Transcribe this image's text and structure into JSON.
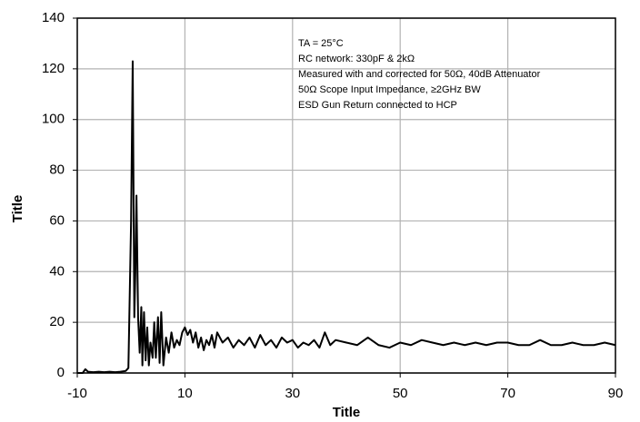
{
  "chart_data": {
    "type": "line",
    "x_label": "Title",
    "y_label": "Title",
    "annotations": [
      "TA = 25°C",
      "RC network: 330pF & 2kΩ",
      "Measured with and corrected for 50Ω, 40dB Attenuator",
      "50Ω Scope Input Impedance, ≥2GHz BW",
      "ESD Gun Return connected to HCP"
    ],
    "xlim": [
      -10,
      90
    ],
    "xticks": [
      -10,
      10,
      30,
      50,
      70,
      90
    ],
    "ylim": [
      0,
      140
    ],
    "yticks": [
      0,
      20,
      40,
      60,
      80,
      100,
      120,
      140
    ],
    "grid": true,
    "series": [
      {
        "color": "#000000",
        "x": [
          -10,
          -9,
          -8.5,
          -8,
          -7,
          -6,
          -5,
          -4,
          -3,
          -2,
          -1,
          -0.5,
          0,
          0.3,
          0.6,
          0.8,
          1.0,
          1.3,
          1.6,
          1.9,
          2.1,
          2.4,
          2.7,
          3.0,
          3.3,
          3.6,
          4.0,
          4.3,
          4.6,
          5.0,
          5.3,
          5.6,
          6.0,
          6.5,
          7,
          7.5,
          8,
          8.5,
          9,
          9.5,
          10,
          10.5,
          11,
          11.5,
          12,
          12.5,
          13,
          13.5,
          14,
          14.5,
          15,
          15.5,
          16,
          17,
          18,
          19,
          20,
          21,
          22,
          23,
          24,
          25,
          26,
          27,
          28,
          29,
          30,
          31,
          32,
          33,
          34,
          35,
          36,
          37,
          38,
          40,
          42,
          44,
          46,
          48,
          50,
          52,
          54,
          56,
          58,
          60,
          62,
          64,
          66,
          68,
          70,
          72,
          74,
          76,
          78,
          80,
          82,
          84,
          86,
          88,
          90
        ],
        "values": [
          0,
          0,
          1.5,
          0.5,
          0.3,
          0.5,
          0.3,
          0.5,
          0.3,
          0.5,
          0.8,
          2,
          60,
          123,
          22,
          40,
          70,
          22,
          8,
          26,
          3,
          24,
          5,
          18,
          3,
          12,
          6,
          20,
          6,
          22,
          4,
          24,
          3,
          14,
          8,
          16,
          10,
          13,
          11,
          16,
          18,
          15,
          17,
          12,
          16,
          10,
          14,
          9,
          13,
          11,
          15,
          10,
          16,
          12,
          14,
          10,
          13,
          11,
          14,
          10,
          15,
          11,
          13,
          10,
          14,
          12,
          13,
          10,
          12,
          11,
          13,
          10,
          16,
          11,
          13,
          12,
          11,
          14,
          11,
          10,
          12,
          11,
          13,
          12,
          11,
          12,
          11,
          12,
          11,
          12,
          12,
          11,
          11,
          13,
          11,
          11,
          12,
          11,
          11,
          12,
          11
        ]
      }
    ]
  }
}
